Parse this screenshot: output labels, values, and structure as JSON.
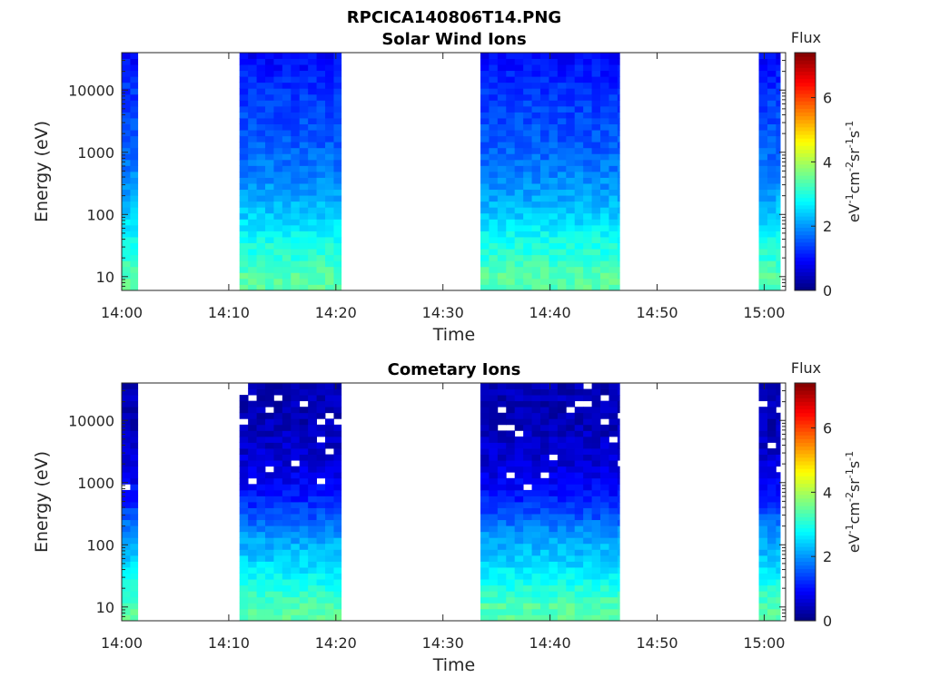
{
  "figure": {
    "title": "RPCICA140806T14.PNG"
  },
  "colorbar": {
    "label": "Flux",
    "unit_base": "eV",
    "unit_exp1": "-1",
    "unit_cm": "cm",
    "unit_exp2": "-2",
    "unit_sr": "sr",
    "unit_exp3": "-1",
    "unit_s": "s",
    "unit_exp4": "-1",
    "ticks": [
      "0",
      "2",
      "4",
      "6"
    ],
    "range": [
      0,
      7.4
    ],
    "colormap": "jet"
  },
  "chart_data": [
    {
      "type": "heatmap",
      "title": "Solar Wind Ions",
      "xlabel": "Time",
      "ylabel": "Energy (eV)",
      "yscale": "log",
      "xlim": [
        "14:00",
        "15:02"
      ],
      "ylim": [
        6,
        40000
      ],
      "xticks": [
        "14:00",
        "14:10",
        "14:20",
        "14:30",
        "14:40",
        "14:50",
        "15:00"
      ],
      "yticks": [
        "10",
        "100",
        "1000",
        "10000"
      ],
      "data_blocks": [
        {
          "start": "14:00",
          "end": "14:01.5"
        },
        {
          "start": "14:11",
          "end": "14:20.5"
        },
        {
          "start": "14:33.5",
          "end": "14:46.5"
        },
        {
          "start": "14:59.5",
          "end": "15:01.5"
        }
      ],
      "flux_profile": {
        "energy_eV": [
          10,
          20,
          40,
          80,
          160,
          300,
          600,
          1200,
          2500,
          5000,
          10000,
          20000,
          40000
        ],
        "flux": [
          3.4,
          3.1,
          2.9,
          2.5,
          2.2,
          2.0,
          1.8,
          1.6,
          1.5,
          1.4,
          1.3,
          1.1,
          0.9
        ]
      }
    },
    {
      "type": "heatmap",
      "title": "Cometary Ions",
      "xlabel": "Time",
      "ylabel": "Energy (eV)",
      "yscale": "log",
      "xlim": [
        "14:00",
        "15:02"
      ],
      "ylim": [
        6,
        40000
      ],
      "xticks": [
        "14:00",
        "14:10",
        "14:20",
        "14:30",
        "14:40",
        "14:50",
        "15:00"
      ],
      "yticks": [
        "10",
        "100",
        "1000",
        "10000"
      ],
      "data_blocks": [
        {
          "start": "14:00",
          "end": "14:01.5"
        },
        {
          "start": "14:11",
          "end": "14:20.5"
        },
        {
          "start": "14:33.5",
          "end": "14:46.5"
        },
        {
          "start": "14:59.5",
          "end": "15:01.5"
        }
      ],
      "flux_profile": {
        "energy_eV": [
          10,
          20,
          40,
          80,
          160,
          300,
          600,
          1200,
          2500,
          5000,
          10000,
          20000,
          40000
        ],
        "flux": [
          3.4,
          3.0,
          2.6,
          2.3,
          2.0,
          1.5,
          1.1,
          0.8,
          0.6,
          0.5,
          0.4,
          0.4,
          0.4
        ]
      }
    }
  ]
}
